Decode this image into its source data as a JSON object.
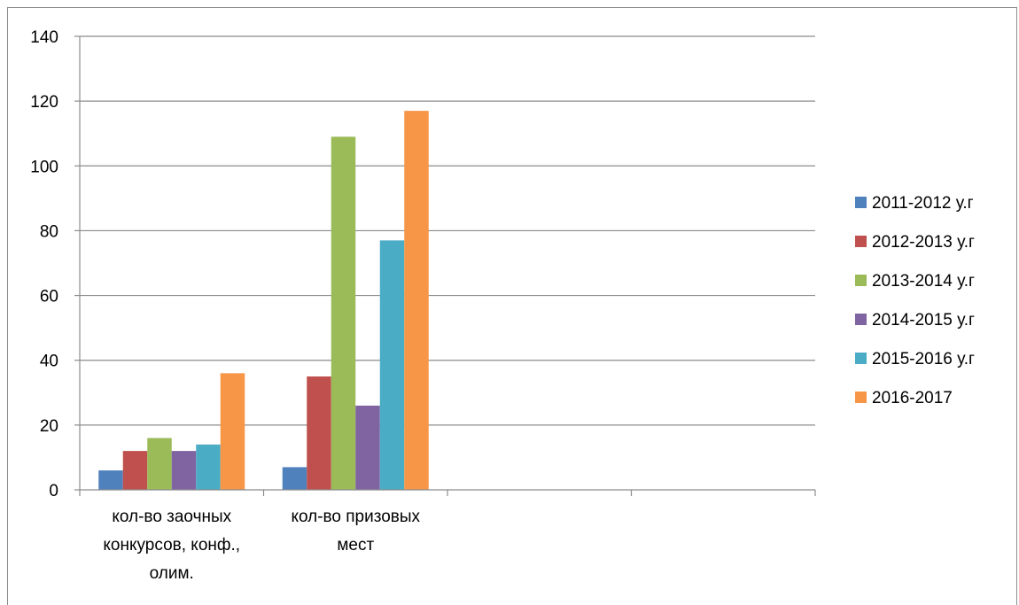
{
  "chart_data": {
    "type": "bar",
    "title": "",
    "xlabel": "",
    "ylabel": "",
    "categories": [
      [
        "кол-во заочных",
        "конкурсов, конф.,",
        "олим."
      ],
      [
        "кол-во призовых",
        "мест"
      ],
      [],
      []
    ],
    "series": [
      {
        "name": "2011-2012 у.г",
        "color": "#4F81BD",
        "values": [
          6,
          7,
          null,
          null
        ]
      },
      {
        "name": "2012-2013 у.г",
        "color": "#C0504D",
        "values": [
          12,
          35,
          null,
          null
        ]
      },
      {
        "name": "2013-2014 у.г",
        "color": "#9BBB59",
        "values": [
          16,
          109,
          null,
          null
        ]
      },
      {
        "name": "2014-2015 у.г",
        "color": "#8064A2",
        "values": [
          12,
          26,
          null,
          null
        ]
      },
      {
        "name": "2015-2016 у.г",
        "color": "#4BACC6",
        "values": [
          14,
          77,
          null,
          null
        ]
      },
      {
        "name": "2016-2017",
        "color": "#F79646",
        "values": [
          36,
          117,
          null,
          null
        ]
      }
    ],
    "ylim": [
      0,
      140
    ],
    "yticks": [
      "0",
      "20",
      "40",
      "60",
      "80",
      "100",
      "120",
      "140"
    ],
    "ytick_values": [
      0,
      20,
      40,
      60,
      80,
      100,
      120,
      140
    ],
    "grid": true,
    "grid_color": "#8c8c8c",
    "legend_position": "right"
  }
}
